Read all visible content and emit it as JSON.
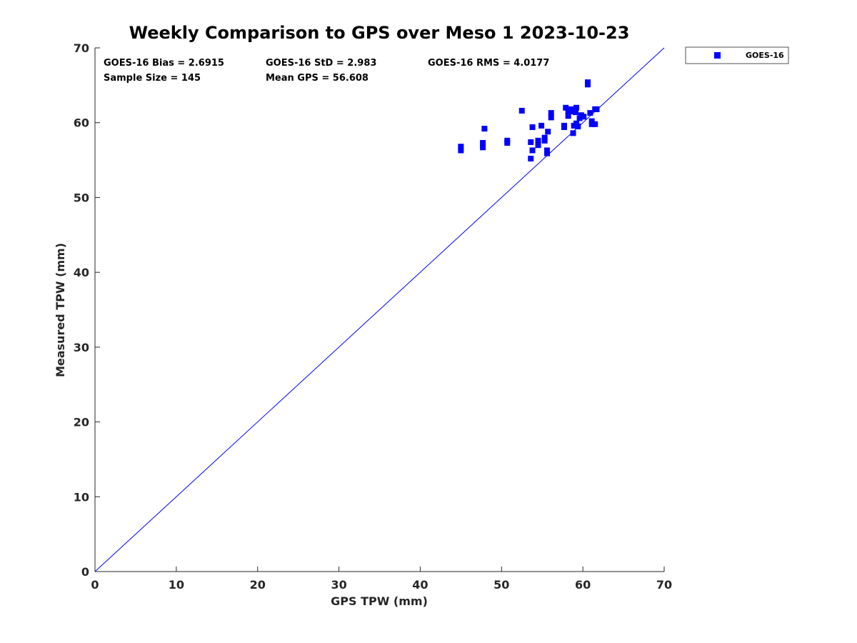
{
  "chart_data": {
    "type": "scatter",
    "title": "Weekly Comparison to GPS over Meso 1 2023-10-23",
    "xlabel": "GPS TPW (mm)",
    "ylabel": "Measured TPW (mm)",
    "xlim": [
      0,
      70
    ],
    "ylim": [
      0,
      70
    ],
    "xticks": [
      0,
      10,
      20,
      30,
      40,
      50,
      60,
      70
    ],
    "yticks": [
      0,
      10,
      20,
      30,
      40,
      50,
      60,
      70
    ],
    "xtick_labels": [
      "0",
      "10",
      "20",
      "30",
      "40",
      "50",
      "60",
      "70"
    ],
    "ytick_labels": [
      "0",
      "10",
      "20",
      "30",
      "40",
      "50",
      "60",
      "70"
    ],
    "grid": false,
    "legend_position": "outside-top-right",
    "reference_line": {
      "name": "1:1 line",
      "from": [
        0,
        0
      ],
      "to": [
        70,
        70
      ],
      "color": "#0000ff"
    },
    "stats": [
      "GOES-16 Bias = 2.6915",
      "GOES-16 StD = 2.983",
      "GOES-16 RMS = 4.0177",
      "Sample Size = 145",
      "Mean GPS = 56.608"
    ],
    "series": [
      {
        "name": "GOES-16",
        "color": "#0000ff",
        "marker": "square",
        "points": [
          [
            45.0,
            56.8
          ],
          [
            45.0,
            56.3
          ],
          [
            47.7,
            57.3
          ],
          [
            47.7,
            56.7
          ],
          [
            47.9,
            59.2
          ],
          [
            50.7,
            57.6
          ],
          [
            50.7,
            57.3
          ],
          [
            52.5,
            61.6
          ],
          [
            53.6,
            57.4
          ],
          [
            53.6,
            55.2
          ],
          [
            53.8,
            59.4
          ],
          [
            53.8,
            56.3
          ],
          [
            54.5,
            57.6
          ],
          [
            54.5,
            57.0
          ],
          [
            54.9,
            59.6
          ],
          [
            55.3,
            58.0
          ],
          [
            55.3,
            57.6
          ],
          [
            55.6,
            56.3
          ],
          [
            55.6,
            55.9
          ],
          [
            55.7,
            58.8
          ],
          [
            56.1,
            61.3
          ],
          [
            56.1,
            60.7
          ],
          [
            57.7,
            59.6
          ],
          [
            57.7,
            59.4
          ],
          [
            57.9,
            62.0
          ],
          [
            58.2,
            61.5
          ],
          [
            58.2,
            60.9
          ],
          [
            58.5,
            61.8
          ],
          [
            58.7,
            61.5
          ],
          [
            58.8,
            58.6
          ],
          [
            58.9,
            59.6
          ],
          [
            59.1,
            61.4
          ],
          [
            59.2,
            62.0
          ],
          [
            59.2,
            59.9
          ],
          [
            59.4,
            59.5
          ],
          [
            59.6,
            60.6
          ],
          [
            59.8,
            61.0
          ],
          [
            60.1,
            60.8
          ],
          [
            60.6,
            65.4
          ],
          [
            60.6,
            65.1
          ],
          [
            60.9,
            61.3
          ],
          [
            61.1,
            60.2
          ],
          [
            61.1,
            59.8
          ],
          [
            61.5,
            61.8
          ],
          [
            61.5,
            59.8
          ],
          [
            61.7,
            61.8
          ]
        ]
      }
    ]
  }
}
